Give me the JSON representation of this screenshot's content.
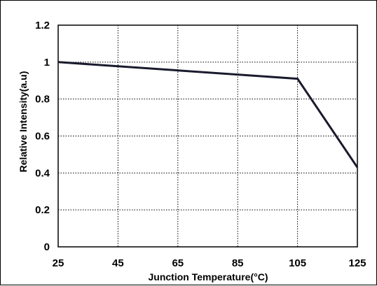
{
  "chart_data": {
    "type": "line",
    "xlabel": "Junction Temperature(°C)",
    "ylabel": "Relative Intensity(a.u)",
    "xlim": [
      25,
      125
    ],
    "ylim": [
      0,
      1.2
    ],
    "x_ticks": [
      "25",
      "45",
      "65",
      "85",
      "105",
      "125"
    ],
    "y_ticks": [
      "0",
      "0.2",
      "0.4",
      "0.6",
      "0.8",
      "1",
      "1.2"
    ],
    "grid": true,
    "series": [
      {
        "x": [
          25,
          105,
          125
        ],
        "y": [
          1.0,
          0.91,
          0.43
        ]
      }
    ],
    "colors": {
      "line": "#1a1a2e",
      "grid": "#000000"
    }
  }
}
